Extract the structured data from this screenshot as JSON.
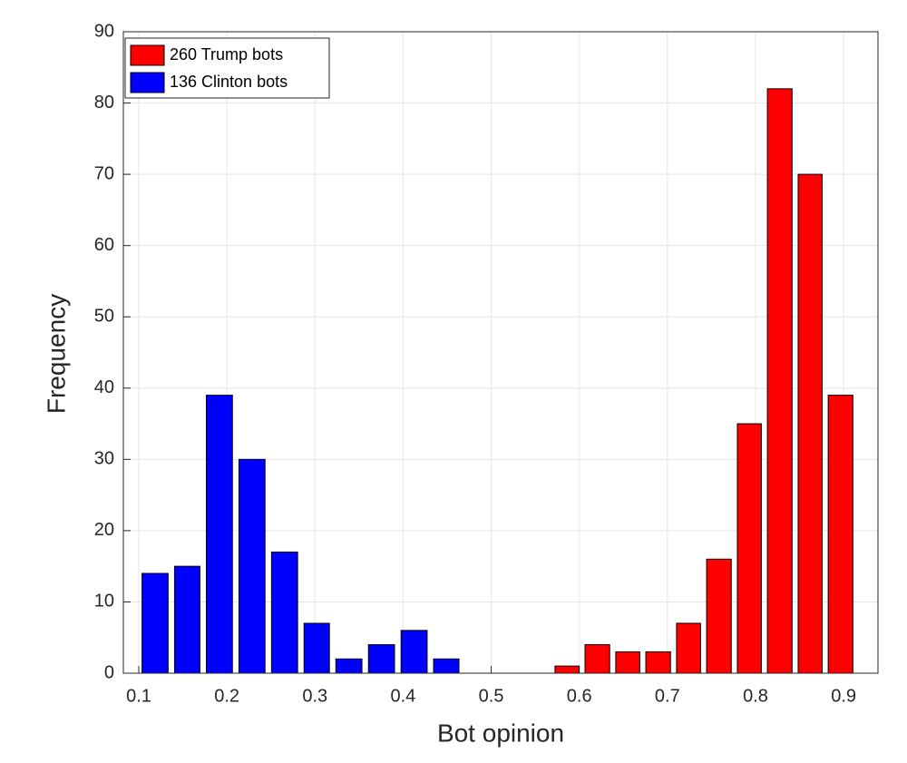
{
  "chart_data": {
    "type": "histogram",
    "xlabel": "Bot opinion",
    "ylabel": "Frequency",
    "series": [
      {
        "name": "260 Trump bots",
        "color": "#ff0000",
        "bins": [
          0.569,
          0.603,
          0.638,
          0.672,
          0.707,
          0.741,
          0.776,
          0.81,
          0.845,
          0.879,
          0.914
        ],
        "values": [
          1,
          4,
          3,
          3,
          7,
          16,
          35,
          82,
          70,
          39
        ]
      },
      {
        "name": "136 Clinton bots",
        "color": "#0000ff",
        "bins": [
          0.1,
          0.137,
          0.173,
          0.21,
          0.247,
          0.284,
          0.32,
          0.357,
          0.394,
          0.431,
          0.467
        ],
        "values": [
          14,
          15,
          39,
          30,
          17,
          7,
          2,
          4,
          6,
          2
        ]
      }
    ],
    "xlim": [
      0.0825,
      0.939
    ],
    "xticks": [
      0.1,
      0.2,
      0.3,
      0.4,
      0.5,
      0.6,
      0.7,
      0.8,
      0.9
    ],
    "ylim": [
      0,
      90
    ],
    "yticks": [
      0,
      10,
      20,
      30,
      40,
      50,
      60,
      70,
      80,
      90
    ],
    "grid": true,
    "legend": "upper left"
  }
}
